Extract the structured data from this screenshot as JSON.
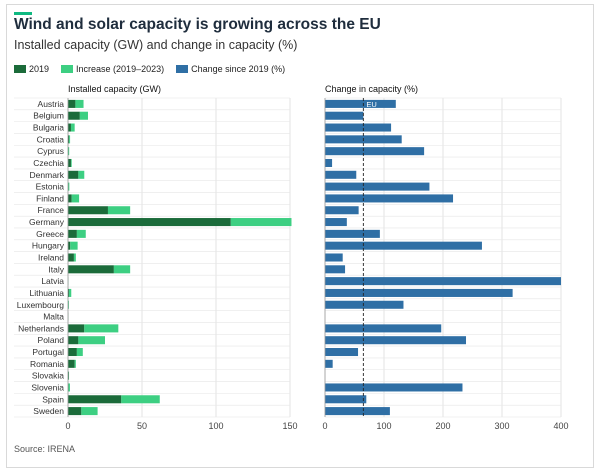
{
  "header": {
    "title": "Wind and solar capacity is growing across the EU",
    "subtitle": "Installed capacity (GW) and change in capacity (%)",
    "source": "Source: IRENA"
  },
  "colors": {
    "accent": "#10b981",
    "dark_green": "#1b6b3a",
    "light_green": "#3dcf82",
    "blue": "#2f6fa5",
    "text": "#1f2d3d"
  },
  "legend": [
    {
      "label": "2019",
      "color": "#1b6b3a"
    },
    {
      "label": "Increase (2019–2023)",
      "color": "#3dcf82"
    },
    {
      "label": "Change since 2019 (%)",
      "color": "#2f6fa5"
    }
  ],
  "chart_data": [
    {
      "type": "bar",
      "orientation": "horizontal",
      "stacked": true,
      "title": "Installed capacity (GW)",
      "xlim": [
        0,
        150
      ],
      "xticks": [
        0,
        50,
        100,
        150
      ],
      "categories": [
        "Austria",
        "Belgium",
        "Bulgaria",
        "Croatia",
        "Cyprus",
        "Czechia",
        "Denmark",
        "Estonia",
        "Finland",
        "France",
        "Germany",
        "Greece",
        "Hungary",
        "Ireland",
        "Italy",
        "Latvia",
        "Lithuania",
        "Luxembourg",
        "Malta",
        "Netherlands",
        "Poland",
        "Portugal",
        "Romania",
        "Slovakia",
        "Slovenia",
        "Spain",
        "Sweden"
      ],
      "series": [
        {
          "name": "2019",
          "values": [
            5,
            8,
            2,
            0.8,
            0.3,
            2,
            7,
            0.3,
            2.5,
            27,
            110,
            6,
            1.5,
            4,
            31,
            0.1,
            0.7,
            0.3,
            0.2,
            11,
            7,
            6,
            4.5,
            0.6,
            0.3,
            36,
            9
          ]
        },
        {
          "name": "Increase (2019–2023)",
          "values": [
            5.5,
            5.5,
            2.5,
            0.6,
            0.5,
            0.5,
            4,
            0.6,
            5,
            15,
            41,
            6,
            5,
            1.3,
            11,
            0.2,
            1.5,
            0.3,
            0.1,
            23,
            18,
            4,
            0.8,
            0.1,
            1,
            26,
            11
          ]
        }
      ]
    },
    {
      "type": "bar",
      "orientation": "horizontal",
      "title": "Change in capacity (%)",
      "xlim": [
        0,
        400
      ],
      "xticks": [
        0,
        100,
        200,
        300,
        400
      ],
      "reference": {
        "label": "EU",
        "value": 65
      },
      "categories": [
        "Austria",
        "Belgium",
        "Bulgaria",
        "Croatia",
        "Cyprus",
        "Czechia",
        "Denmark",
        "Estonia",
        "Finland",
        "France",
        "Germany",
        "Greece",
        "Hungary",
        "Ireland",
        "Italy",
        "Latvia",
        "Lithuania",
        "Luxembourg",
        "Malta",
        "Netherlands",
        "Poland",
        "Portugal",
        "Romania",
        "Slovakia",
        "Slovenia",
        "Spain",
        "Sweden"
      ],
      "series": [
        {
          "name": "Change since 2019 (%)",
          "values": [
            120,
            65,
            112,
            130,
            168,
            12,
            53,
            177,
            217,
            57,
            37,
            93,
            266,
            30,
            34,
            400,
            318,
            133,
            0,
            197,
            239,
            56,
            13,
            0,
            233,
            70,
            110
          ]
        }
      ]
    }
  ]
}
